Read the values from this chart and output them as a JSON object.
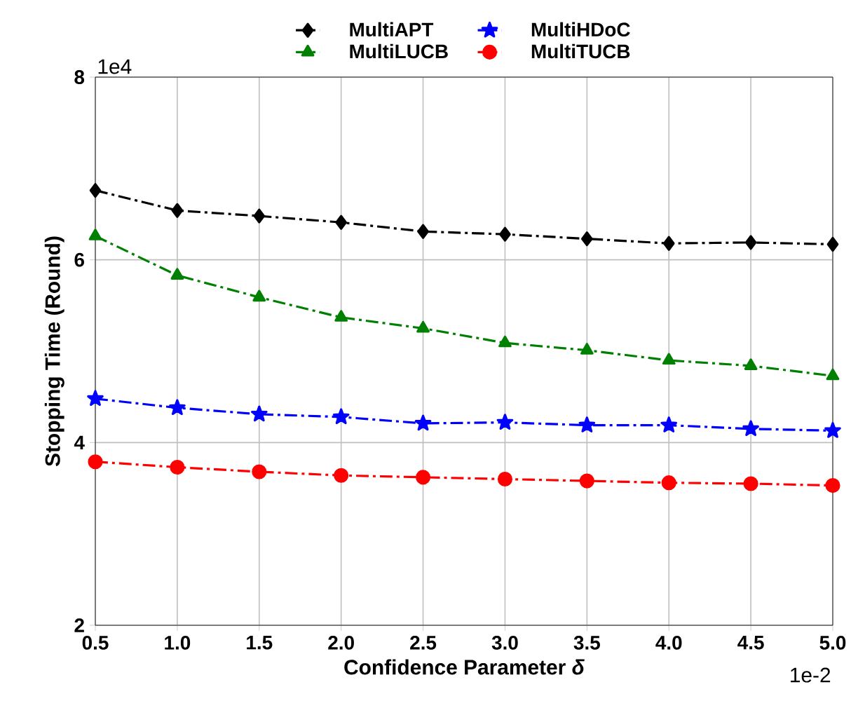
{
  "chart_data": {
    "type": "line",
    "xlabel": "Confidence Parameter *δ*",
    "ylabel": "Stopping Time (Round)",
    "x": [
      0.5,
      1.0,
      1.5,
      2.0,
      2.5,
      3.0,
      3.5,
      4.0,
      4.5,
      5.0
    ],
    "series": [
      {
        "name": "MultiAPT",
        "color": "#000000",
        "marker": "diamond",
        "values": [
          6.76,
          6.54,
          6.48,
          6.41,
          6.31,
          6.28,
          6.23,
          6.18,
          6.19,
          6.17
        ]
      },
      {
        "name": "MultiLUCB",
        "color": "#008000",
        "marker": "triangle",
        "values": [
          6.26,
          5.83,
          5.59,
          5.37,
          5.25,
          5.09,
          5.01,
          4.9,
          4.84,
          4.73
        ]
      },
      {
        "name": "MultiHDoC",
        "color": "#0000ff",
        "marker": "star",
        "values": [
          4.48,
          4.38,
          4.31,
          4.28,
          4.21,
          4.22,
          4.19,
          4.19,
          4.15,
          4.13
        ]
      },
      {
        "name": "MultiTUCB",
        "color": "#ff0000",
        "marker": "circle",
        "values": [
          3.79,
          3.73,
          3.68,
          3.64,
          3.62,
          3.6,
          3.58,
          3.56,
          3.55,
          3.53
        ]
      }
    ],
    "line_style": "dashdot",
    "xlim": [
      0.5,
      5.0
    ],
    "xticks": [
      0.5,
      {
        "value": 1,
        "label": "1.0"
      },
      1.5,
      {
        "value": 2,
        "label": "2.0"
      },
      2.5,
      {
        "value": 3,
        "label": "3.0"
      },
      3.5,
      {
        "value": 4,
        "label": "4.0"
      },
      4.5,
      {
        "value": 5,
        "label": "5.0"
      }
    ],
    "ylim": [
      2,
      8
    ],
    "yticks": [
      2,
      4,
      6,
      8
    ],
    "annotations": [
      "1e4",
      "1e-2"
    ],
    "grid": true,
    "legend": "top"
  }
}
